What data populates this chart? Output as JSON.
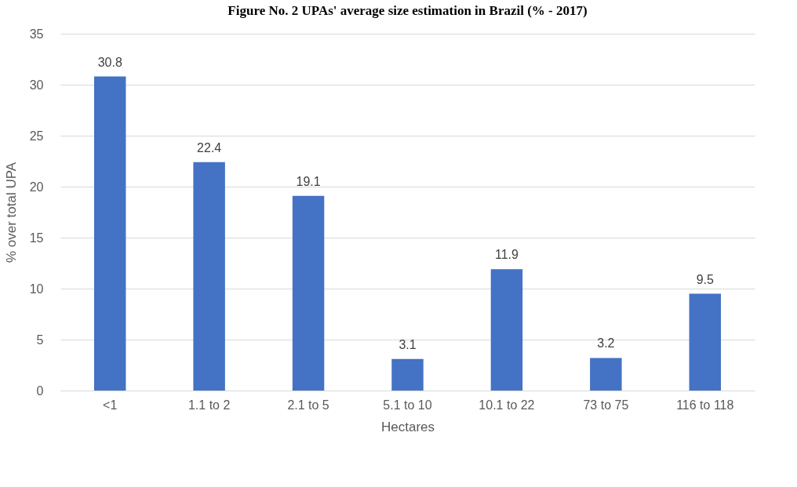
{
  "chart_data": {
    "type": "bar",
    "title": "Figure No. 2 UPAs' average size estimation in Brazil (% - 2017)",
    "categories": [
      "<1",
      "1.1 to 2",
      "2.1 to 5",
      "5.1 to 10",
      "10.1 to 22",
      "73 to 75",
      "116 to 118"
    ],
    "values": [
      30.8,
      22.4,
      19.1,
      3.1,
      11.9,
      3.2,
      9.5
    ],
    "color": "#4472c4",
    "xlabel": "Hectares",
    "ylabel": "% over total UPA",
    "ylim": [
      0,
      35
    ],
    "yticks": [
      0,
      5,
      10,
      15,
      20,
      25,
      30,
      35
    ],
    "grid": "y",
    "data_labels": true
  }
}
